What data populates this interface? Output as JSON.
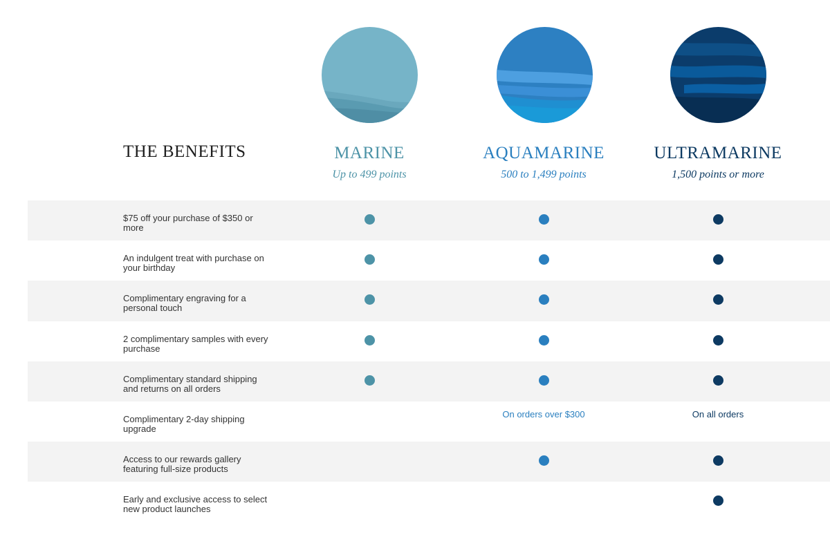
{
  "colors": {
    "marine": "#4d93a7",
    "aquamarine": "#2a7fbf",
    "ultramarine": "#0d3a62"
  },
  "benefits_title": "THE BENEFITS",
  "tiers": [
    {
      "key": "marine",
      "name": "MARINE",
      "range": "Up to 499 points",
      "color": "#4d93a7"
    },
    {
      "key": "aquamarine",
      "name": "AQUAMARINE",
      "range": "500 to 1,499 points",
      "color": "#2a7fbf"
    },
    {
      "key": "ultramarine",
      "name": "ULTRAMARINE",
      "range": "1,500 points or more",
      "color": "#0d3a62"
    }
  ],
  "rows": [
    {
      "label": "$75 off your purchase of $350 or more",
      "cells": [
        {
          "type": "dot"
        },
        {
          "type": "dot"
        },
        {
          "type": "dot"
        }
      ]
    },
    {
      "label": "An indulgent treat with purchase on your birthday",
      "cells": [
        {
          "type": "dot"
        },
        {
          "type": "dot"
        },
        {
          "type": "dot"
        }
      ]
    },
    {
      "label": "Complimentary engraving for a personal touch",
      "cells": [
        {
          "type": "dot"
        },
        {
          "type": "dot"
        },
        {
          "type": "dot"
        }
      ]
    },
    {
      "label": "2 complimentary samples with every purchase",
      "cells": [
        {
          "type": "dot"
        },
        {
          "type": "dot"
        },
        {
          "type": "dot"
        }
      ]
    },
    {
      "label": "Complimentary standard shipping and returns on all orders",
      "cells": [
        {
          "type": "dot"
        },
        {
          "type": "dot"
        },
        {
          "type": "dot"
        }
      ]
    },
    {
      "label": "Complimentary 2-day shipping upgrade",
      "cells": [
        {
          "type": "none"
        },
        {
          "type": "text",
          "text": "On orders over $300"
        },
        {
          "type": "text",
          "text": "On all orders"
        }
      ]
    },
    {
      "label": "Access to our rewards gallery featuring full-size products",
      "cells": [
        {
          "type": "none"
        },
        {
          "type": "dot"
        },
        {
          "type": "dot"
        }
      ]
    },
    {
      "label": "Early and exclusive access to select new product launches",
      "cells": [
        {
          "type": "none"
        },
        {
          "type": "none"
        },
        {
          "type": "dot"
        }
      ]
    }
  ]
}
